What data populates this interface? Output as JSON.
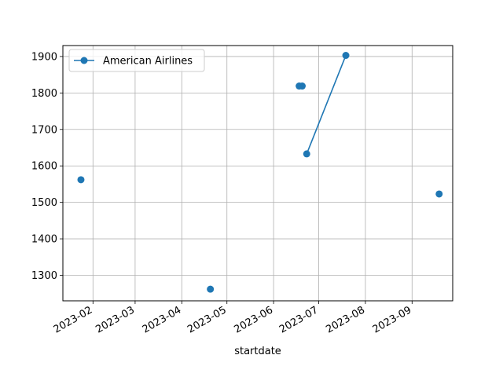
{
  "chart_data": {
    "type": "line",
    "xlabel": "startdate",
    "ylabel": "",
    "title": "",
    "x_axis_type": "date",
    "xlim": [
      "2023-01-12",
      "2023-09-28"
    ],
    "ylim": [
      1230,
      1930
    ],
    "x_ticks": [
      "2023-02-01",
      "2023-03-01",
      "2023-04-01",
      "2023-05-01",
      "2023-06-01",
      "2023-07-01",
      "2023-08-01",
      "2023-09-01"
    ],
    "x_tick_labels": [
      "2023-02",
      "2023-03",
      "2023-04",
      "2023-05",
      "2023-06",
      "2023-07",
      "2023-08",
      "2023-09"
    ],
    "y_ticks": [
      1300,
      1400,
      1500,
      1600,
      1700,
      1800,
      1900
    ],
    "y_tick_labels": [
      "1300",
      "1400",
      "1500",
      "1600",
      "1700",
      "1800",
      "1900"
    ],
    "grid": true,
    "legend_position": "top-left",
    "series": [
      {
        "name": "American Airlines",
        "color": "#1f77b4",
        "marker": "circle",
        "points": [
          {
            "x": "2023-01-24",
            "y": 1562
          },
          {
            "x": "2023-04-20",
            "y": 1262
          },
          {
            "x": "2023-06-18",
            "y": 1819
          },
          {
            "x": "2023-06-20",
            "y": 1819
          },
          {
            "x": "2023-06-23",
            "y": 1633
          },
          {
            "x": "2023-07-19",
            "y": 1903
          },
          {
            "x": "2023-09-19",
            "y": 1523
          }
        ],
        "segments": [
          [
            4,
            5
          ]
        ]
      }
    ]
  }
}
